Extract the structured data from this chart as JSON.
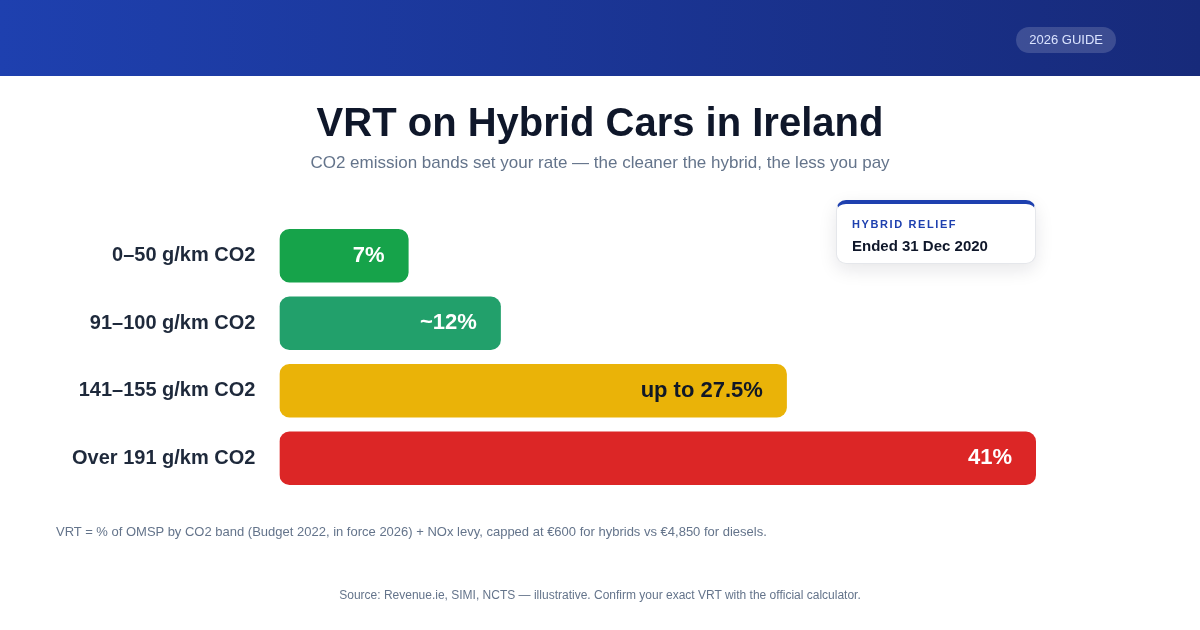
{
  "chart_data": {
    "type": "bar",
    "orientation": "horizontal",
    "title": "VRT on Hybrid Cars in Ireland",
    "subtitle": "CO2 emission bands set your rate — the cleaner the hybrid, the less you pay",
    "categories": [
      "0–50 g/km CO2",
      "91–100 g/km CO2",
      "141–155 g/km CO2",
      "Over 191 g/km CO2"
    ],
    "values": [
      7,
      12,
      27.5,
      41
    ],
    "colors": [
      "#16a34a",
      "#22a06b",
      "#eab308",
      "#dc2626"
    ],
    "value_labels": [
      "7%",
      "~12%",
      "up to 27.5%",
      "41%"
    ],
    "annotations": [
      "2026 GUIDE",
      "HYBRID RELIEF",
      "Ended 31 Dec 2020",
      "VRT = % of OMSP by CO2 band (Budget 2022, in force 2026) + NOx levy, capped at €600 for hybrids vs €4,850 for diesels.",
      "Source: Revenue.ie, SIMI, NCTS — illustrative. Confirm your exact VRT with the official calculator."
    ],
    "grid": false,
    "legend": false,
    "tick_labels": "y"
  }
}
